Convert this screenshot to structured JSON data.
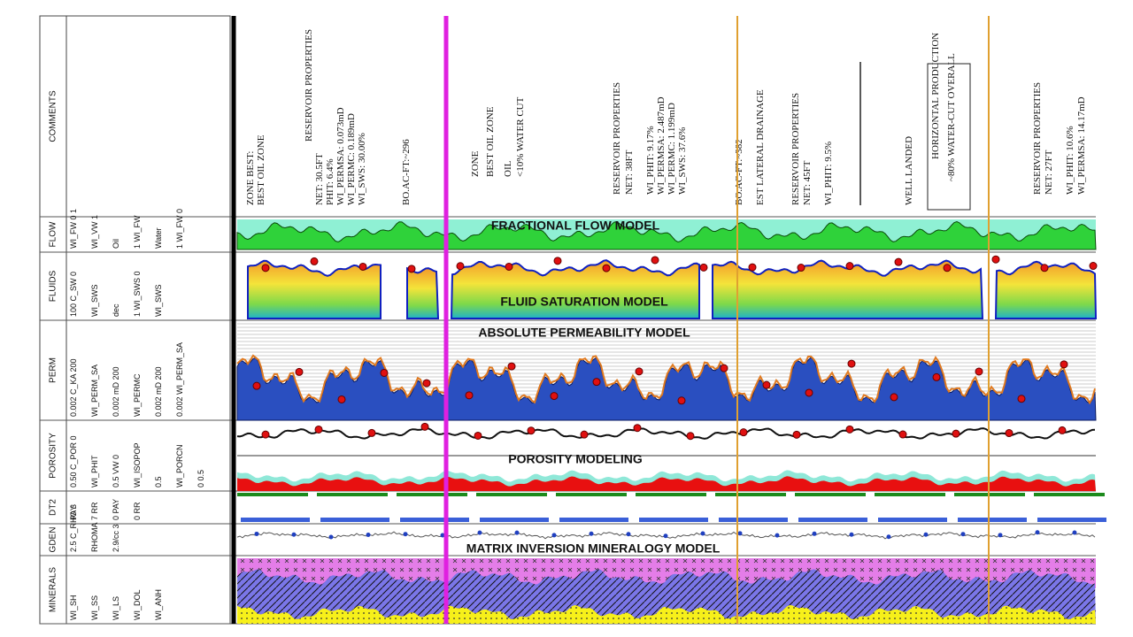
{
  "tracks": [
    {
      "name": "COMMENTS",
      "labels": []
    },
    {
      "name": "FLOW",
      "labels": [
        "WI_FW 0 1",
        "WI_VW 1",
        "Oil",
        "1 WI_FW",
        "Water",
        "1 WI_FW 0"
      ]
    },
    {
      "name": "FLUIDS",
      "labels": [
        "100 C_SW 0",
        "WI_SWS",
        "dec",
        "1 WI_SWS 0",
        "WI_SWS"
      ]
    },
    {
      "name": "PERM",
      "labels": [
        "0.002 C_KA 200",
        "WI_PERM_SA",
        "0.002 mD 200",
        "WI_PERMC",
        "0.002 mD 200",
        "0.002 WI_PERM_SA"
      ]
    },
    {
      "name": "POROSITY",
      "labels": [
        "0.50 C_POR 0",
        "WI_PHIT",
        "0.5 VW 0",
        "WI_ISOPOP",
        "0.5",
        "WI_PORCN",
        "0 0.5"
      ]
    },
    {
      "name": "DT2",
      "labels": [
        "PAY",
        "7 RR",
        "0 PAY",
        "0 RR"
      ]
    },
    {
      "name": "GDEN",
      "labels": [
        "2.5 C_RHO 3",
        "RHOMA",
        "2.9/cc 3"
      ]
    },
    {
      "name": "MINERALS",
      "labels": [
        "WI_SH",
        "WI_SS",
        "WI_LS",
        "WI_DOL",
        "WI_ANH"
      ]
    }
  ],
  "models": [
    "FRACTIONAL FLOW MODEL",
    "FLUID SATURATION MODEL",
    "ABSOLUTE PERMEABILITY MODEL",
    "POROSITY MODELING",
    "MATRIX INVERSION MINERALOGY MODEL"
  ],
  "comments": [
    {
      "lines": [
        "ZONE BEST:",
        "BEST OIL ZONE",
        "RESERVOIR PROPERTIES",
        "NET: 30.5FT",
        "PHIT: 6.4%",
        "WI_PERMSA: 0.073mD",
        "WI_PERMC: 0.189mD",
        "WI_SWS: 30.00%"
      ]
    },
    {
      "lines": [
        "BO.AC-FT:~296"
      ]
    },
    {
      "lines": [
        "ZONE",
        "BEST OIL ZONE",
        "OIL",
        "<10% WATER CUT"
      ]
    },
    {
      "lines": [
        "RESERVOIR PROPERTIES",
        "NET: 38FT",
        "WI_PHIT: 9.17%",
        "WI_PERMSA: 2.487mD",
        "WI_PERMC: 1.199mD",
        "WI_SWS: 37.6%"
      ]
    },
    {
      "lines": [
        "BO.AC-FT:~382",
        "EST LATERAL DRAINAGE"
      ]
    },
    {
      "lines": [
        "RESERVOIR PROPERTIES",
        "NET: 45FT",
        "WI_PHIT: 9.5%"
      ]
    },
    {
      "lines": [
        "WELL LANDED"
      ]
    },
    {
      "lines": [
        "HORIZONTAL PRODUCTION",
        "~80% WATER-CUT OVERALL"
      ]
    },
    {
      "lines": [
        "RESERVOIR PROPERTIES",
        "NET: 27FT",
        "WI_PHIT: 10.6%",
        "WI_PERMSA: 14.17mD"
      ]
    }
  ]
}
